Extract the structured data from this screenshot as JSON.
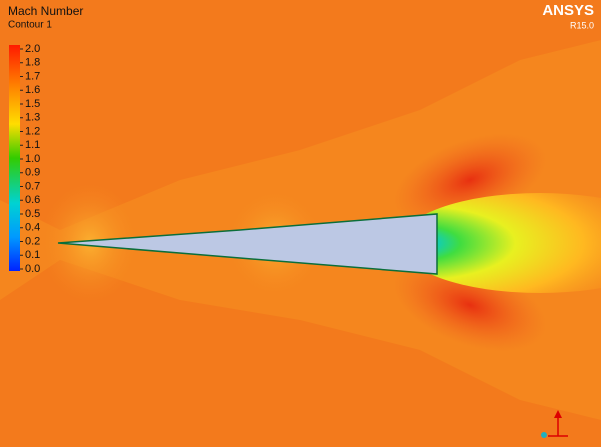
{
  "legend": {
    "title": "Mach Number",
    "subtitle": "Contour 1",
    "labels": [
      "2.0",
      "1.8",
      "1.7",
      "1.6",
      "1.5",
      "1.3",
      "1.2",
      "1.1",
      "1.0",
      "0.9",
      "0.7",
      "0.6",
      "0.5",
      "0.4",
      "0.2",
      "0.1",
      "0.0"
    ]
  },
  "logo": {
    "brand": "ANSYS",
    "version": "R15.0"
  }
}
